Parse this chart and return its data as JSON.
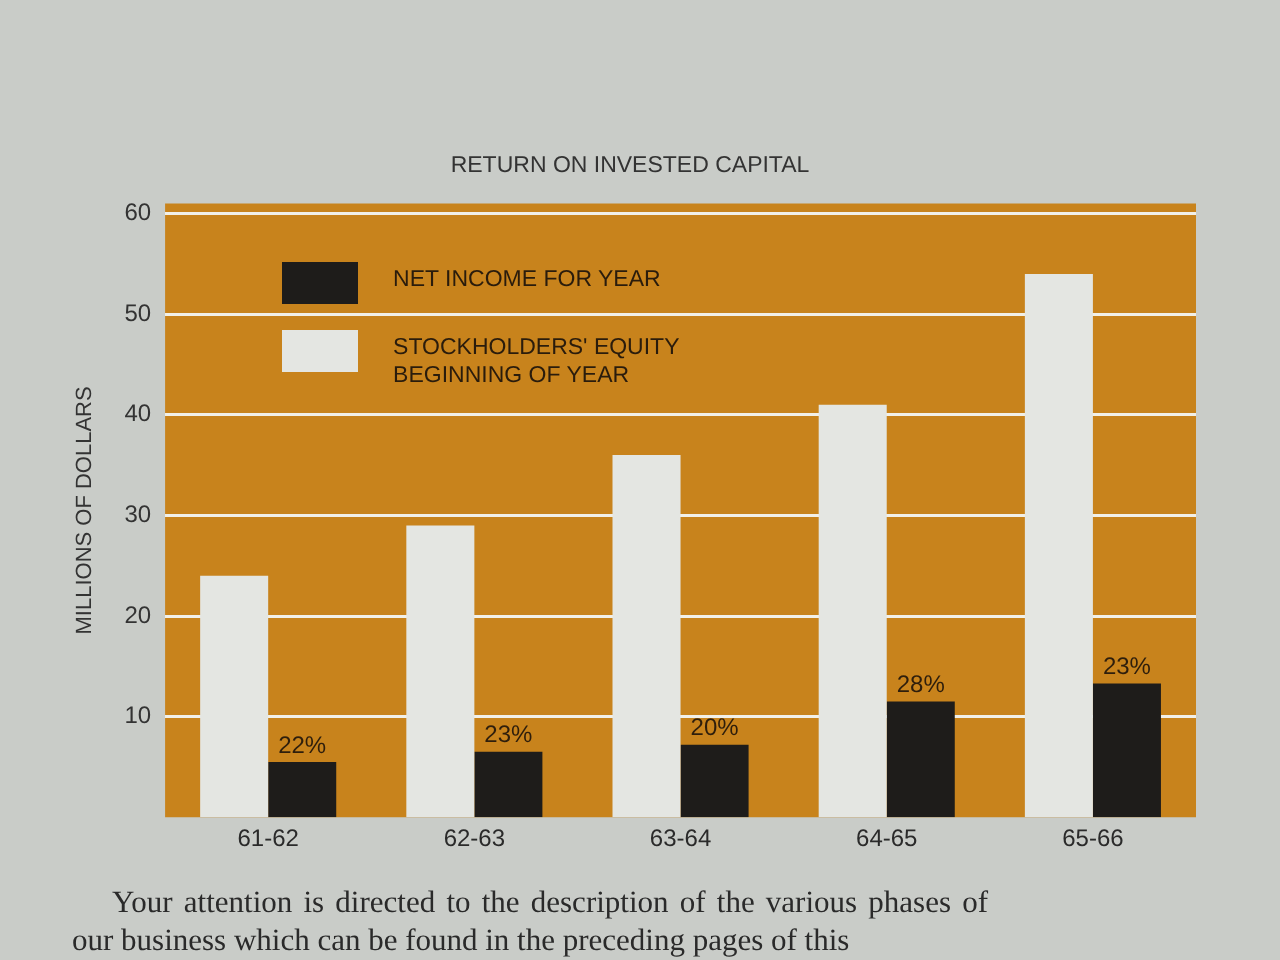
{
  "chart_data": {
    "type": "bar",
    "title": "RETURN ON INVESTED CAPITAL",
    "ylabel": "MILLIONS OF DOLLARS",
    "categories": [
      "61-62",
      "62-63",
      "63-64",
      "64-65",
      "65-66"
    ],
    "series": [
      {
        "name": "STOCKHOLDERS' EQUITY BEGINNING OF YEAR",
        "color": "#e4e6e2",
        "values": [
          24,
          29,
          36,
          41,
          54
        ]
      },
      {
        "name": "NET INCOME FOR YEAR",
        "color": "#1e1c1a",
        "values": [
          5.5,
          6.5,
          7.2,
          11.5,
          13.3
        ]
      }
    ],
    "ylim": [
      0,
      61
    ],
    "yticks": [
      10,
      20,
      30,
      40,
      50,
      60
    ],
    "grid": "y",
    "legend": "top left",
    "annotations": [
      {
        "text": "22%",
        "x": "61-62",
        "y": 5.5
      },
      {
        "text": "23%",
        "x": "62-63",
        "y": 6.5
      },
      {
        "text": "20%",
        "x": "63-64",
        "y": 7.2
      },
      {
        "text": "28%",
        "x": "64-65",
        "y": 11.5
      },
      {
        "text": "23%",
        "x": "65-66",
        "y": 13.3
      },
      "Your attention is directed to the description of the various phases of our business which can be found in the preceding pages of this"
    ]
  }
}
